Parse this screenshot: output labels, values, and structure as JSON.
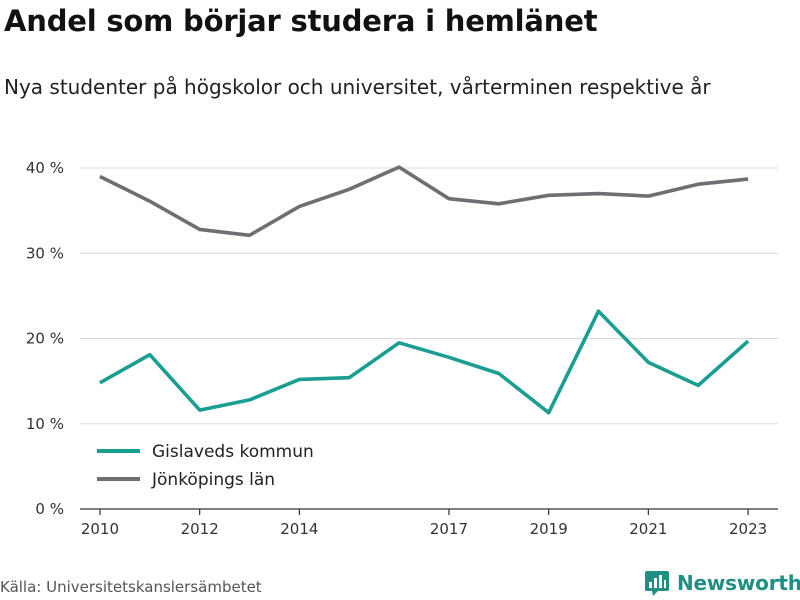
{
  "header": {
    "title": "Andel som börjar studera i hemlänet",
    "subtitle": "Nya studenter på högskolor och universitet, vårterminen respektive år"
  },
  "footer": {
    "source": "Källa: Universitetskanslersämbetet",
    "brand": "Newsworthy"
  },
  "colors": {
    "gislaved": "#1a9e92",
    "jonkoping": "#6e6e73",
    "grid": "#d9d9d9",
    "axis": "#333333",
    "brand": "#1f8f84"
  },
  "icons": {
    "brand": "newsworthy-logo-icon"
  },
  "chart_data": {
    "type": "line",
    "x": [
      2010,
      2011,
      2012,
      2013,
      2014,
      2015,
      2016,
      2017,
      2018,
      2019,
      2020,
      2021,
      2022,
      2023
    ],
    "xticks": [
      2010,
      2012,
      2014,
      2017,
      2019,
      2021,
      2023
    ],
    "yticks": [
      0,
      10,
      20,
      30,
      40
    ],
    "ytick_labels": [
      "0 %",
      "10 %",
      "20 %",
      "30 %",
      "40 %"
    ],
    "ylim": [
      0,
      40
    ],
    "xlim": [
      2009.6,
      2023.6
    ],
    "grid": true,
    "legend_position": "bottom-left",
    "series": [
      {
        "name": "Gislaveds kommun",
        "values": [
          14.8,
          18.1,
          11.6,
          12.8,
          15.2,
          15.4,
          19.5,
          17.8,
          15.9,
          11.3,
          23.2,
          17.2,
          14.5,
          19.7
        ]
      },
      {
        "name": "Jönköpings län",
        "values": [
          39.0,
          36.1,
          32.8,
          32.1,
          35.5,
          37.5,
          40.1,
          36.4,
          35.8,
          36.8,
          37.0,
          36.7,
          38.1,
          38.7
        ]
      }
    ]
  }
}
